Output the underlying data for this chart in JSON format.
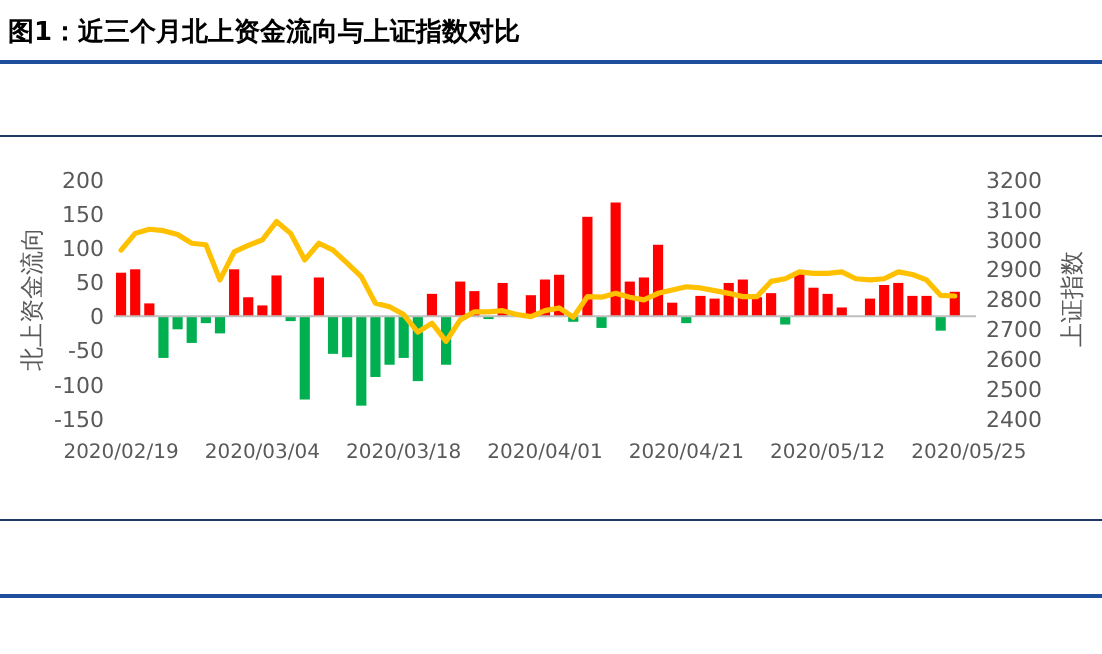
{
  "chart_data": {
    "type": "bar",
    "title": "图1：近三个月北上资金流向与上证指数对比",
    "ylabel": "北上资金流向",
    "y2label": "上证指数",
    "categories": [
      "2020/02/19",
      null,
      null,
      null,
      null,
      null,
      null,
      null,
      null,
      null,
      "2020/03/04",
      null,
      null,
      null,
      null,
      null,
      null,
      null,
      null,
      null,
      "2020/03/18",
      null,
      null,
      null,
      null,
      null,
      null,
      null,
      null,
      null,
      "2020/04/01",
      null,
      null,
      null,
      null,
      null,
      null,
      null,
      null,
      null,
      "2020/04/21",
      null,
      null,
      null,
      null,
      null,
      null,
      null,
      null,
      null,
      "2020/05/12",
      null,
      null,
      null,
      null,
      null,
      null,
      null,
      null,
      null,
      "2020/05/25"
    ],
    "ylim": [
      -150,
      200
    ],
    "yticks": [
      -150,
      -100,
      -50,
      0,
      50,
      100,
      150,
      200
    ],
    "y2lim": [
      2400,
      3200
    ],
    "y2ticks": [
      2400,
      2500,
      2600,
      2700,
      2800,
      2900,
      3000,
      3100,
      3200
    ],
    "series": [
      {
        "values": [
          64,
          69,
          19,
          -61,
          -19,
          -39,
          -10,
          -25,
          69,
          28,
          16,
          60,
          -7,
          -122,
          57,
          -55,
          -60,
          -131,
          -89,
          -71,
          -61,
          -95,
          33,
          -71,
          51,
          37,
          -4,
          49,
          null,
          31,
          54,
          61,
          -8,
          146,
          -17,
          167,
          51,
          57,
          105,
          20,
          -10,
          30,
          26,
          49,
          54,
          28,
          34,
          -12,
          64,
          42,
          33,
          13,
          null,
          26,
          46,
          49,
          30,
          30,
          -21,
          36,
          null
        ],
        "colors": [
          "#ff0000",
          "#ff0000",
          "#ff0000",
          "#00b050",
          "#00b050",
          "#00b050",
          "#00b050",
          "#00b050",
          "#ff0000",
          "#ff0000",
          "#ff0000",
          "#ff0000",
          "#00b050",
          "#00b050",
          "#ff0000",
          "#00b050",
          "#00b050",
          "#00b050",
          "#00b050",
          "#00b050",
          "#00b050",
          "#00b050",
          "#ff0000",
          "#00b050",
          "#ff0000",
          "#ff0000",
          "#00b050",
          "#ff0000",
          null,
          "#ff0000",
          "#ff0000",
          "#ff0000",
          "#00b050",
          "#ff0000",
          "#00b050",
          "#ff0000",
          "#ff0000",
          "#ff0000",
          "#ff0000",
          "#ff0000",
          "#00b050",
          "#ff0000",
          "#ff0000",
          "#ff0000",
          "#ff0000",
          "#ff0000",
          "#ff0000",
          "#00b050",
          "#ff0000",
          "#ff0000",
          "#ff0000",
          "#ff0000",
          null,
          "#ff0000",
          "#ff0000",
          "#ff0000",
          "#ff0000",
          "#ff0000",
          "#00b050",
          "#ff0000",
          null
        ]
      },
      {
        "type": "line",
        "axis": "y2",
        "color": "#ffc000",
        "values": [
          2965,
          3021,
          3035,
          3030,
          3017,
          2988,
          2983,
          2865,
          2959,
          2981,
          2999,
          3061,
          3021,
          2932,
          2988,
          2965,
          2921,
          2876,
          2787,
          2775,
          2749,
          2690,
          2720,
          2659,
          2731,
          2758,
          2758,
          2762,
          2749,
          2742,
          2762,
          2771,
          2740,
          2809,
          2807,
          2820,
          2807,
          2798,
          2820,
          2831,
          2842,
          2838,
          2829,
          2820,
          2809,
          2809,
          2860,
          2869,
          2892,
          2887,
          2887,
          2892,
          2869,
          2865,
          2869,
          2892,
          2883,
          2865,
          2813,
          2811,
          null
        ]
      }
    ]
  }
}
